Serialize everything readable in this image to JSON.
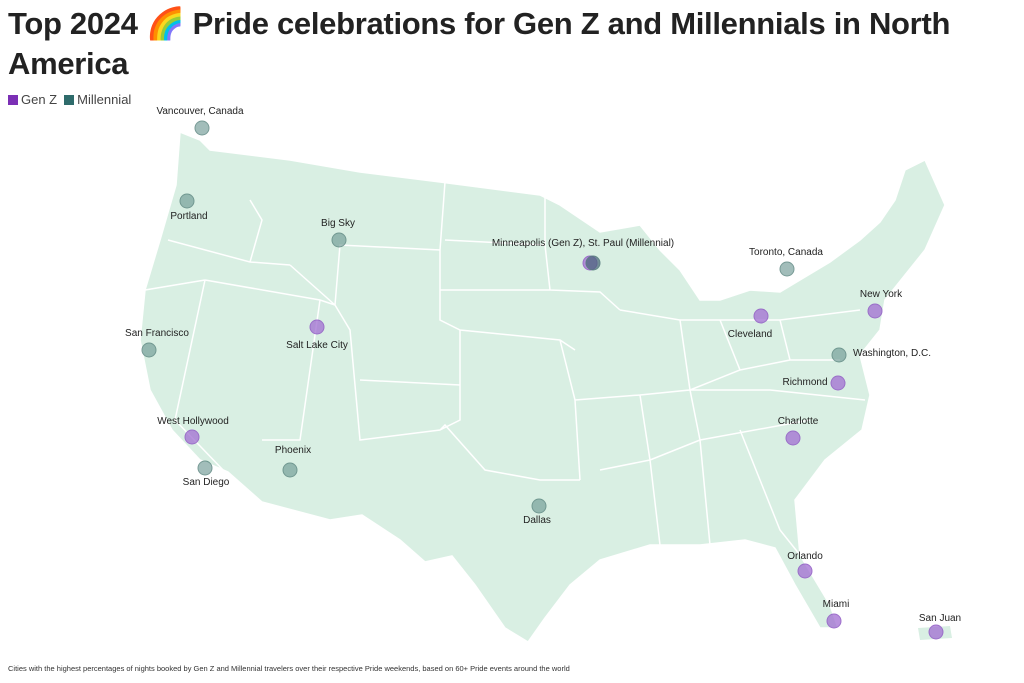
{
  "title": "Top 2024 🌈 Pride celebrations for Gen Z and Millennials in North America",
  "legend": [
    {
      "label": "Gen Z",
      "color": "#7b2fb5"
    },
    {
      "label": "Millennial",
      "color": "#2e6b6b"
    }
  ],
  "colors": {
    "land": "#d9efe3",
    "borders": "#ffffff"
  },
  "cities": [
    {
      "name": "Vancouver, Canada",
      "group": "Millennial"
    },
    {
      "name": "Portland",
      "group": "Millennial"
    },
    {
      "name": "Big Sky",
      "group": "Millennial"
    },
    {
      "name": "Minneapolis (Gen Z), St. Paul (Millennial)",
      "group": "Both"
    },
    {
      "name": "Toronto, Canada",
      "group": "Millennial"
    },
    {
      "name": "New York",
      "group": "Gen Z"
    },
    {
      "name": "Cleveland",
      "group": "Gen Z"
    },
    {
      "name": "Salt Lake City",
      "group": "Gen Z"
    },
    {
      "name": "San Francisco",
      "group": "Millennial"
    },
    {
      "name": "Washington, D.C.",
      "group": "Millennial"
    },
    {
      "name": "Richmond",
      "group": "Gen Z"
    },
    {
      "name": "West Hollywood",
      "group": "Gen Z"
    },
    {
      "name": "Charlotte",
      "group": "Gen Z"
    },
    {
      "name": "San Diego",
      "group": "Millennial"
    },
    {
      "name": "Phoenix",
      "group": "Millennial"
    },
    {
      "name": "Dallas",
      "group": "Millennial"
    },
    {
      "name": "Orlando",
      "group": "Gen Z"
    },
    {
      "name": "Miami",
      "group": "Gen Z"
    },
    {
      "name": "San Juan",
      "group": "Gen Z"
    }
  ],
  "footnote": "Cities with the highest percentages of nights booked by Gen Z and Millennial travelers over their respective Pride weekends, based on 60+ Pride events around the world"
}
